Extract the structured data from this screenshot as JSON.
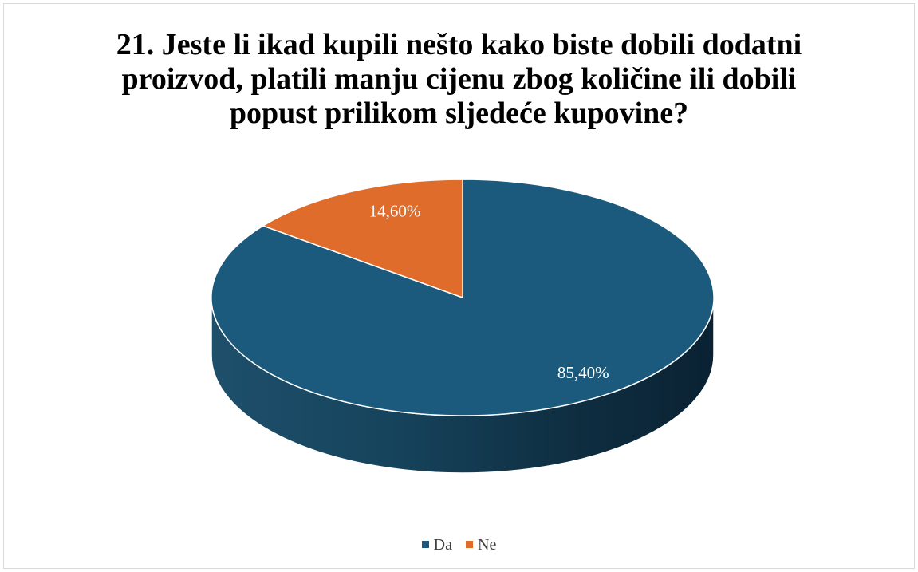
{
  "chart_data": {
    "type": "pie",
    "title": "21. Jeste li ikad kupili nešto kako biste dobili dodatni proizvod, platili manju cijenu zbog količine ili dobili popust prilikom sljedeće kupovine?",
    "title_lines": [
      "21. Jeste li ikad kupili nešto kako biste dobili dodatni",
      "proizvod, platili manju cijenu zbog količine ili dobili",
      "popust prilikom sljedeće kupovine?"
    ],
    "categories": [
      "Da",
      "Ne"
    ],
    "values": [
      85.4,
      14.6
    ],
    "data_labels": [
      "85,40%",
      "14,60%"
    ],
    "colors": [
      "#1b5a7c",
      "#e06c2c"
    ],
    "style": "3d-pie",
    "legend_position": "bottom"
  }
}
